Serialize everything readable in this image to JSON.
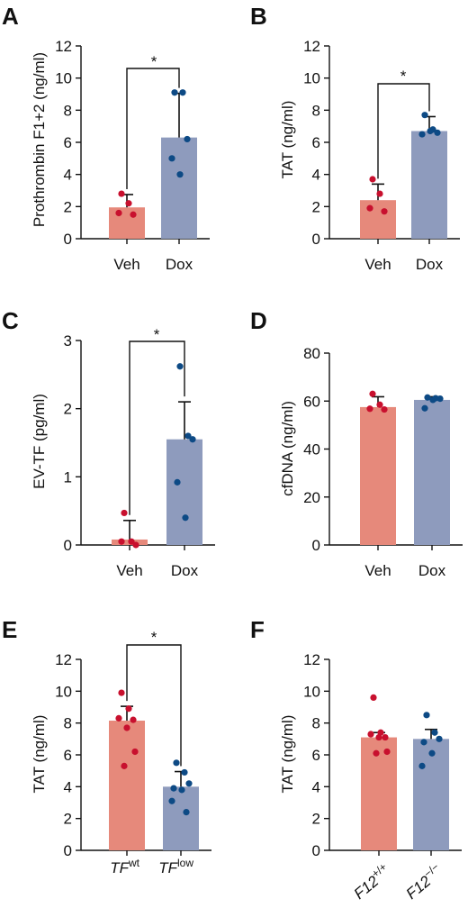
{
  "colors": {
    "veh_bar": "#e6897b",
    "dox_bar": "#8e9bbd",
    "veh_dot": "#c8102e",
    "dox_dot": "#0d4a85",
    "axis": "#111111"
  },
  "chart_data": [
    {
      "type": "bar",
      "panel": "A",
      "ylabel": "Prothrombin F1+2 (ng/ml)",
      "ylim": [
        0,
        12
      ],
      "yticks": [
        "0",
        "2",
        "4",
        "6",
        "8",
        "10",
        "12"
      ],
      "categories": [
        "Veh",
        "Dox"
      ],
      "values": [
        1.95,
        6.3
      ],
      "error_upper": [
        2.75,
        9.05
      ],
      "points": [
        [
          2.8,
          2.2,
          1.6,
          1.5
        ],
        [
          9.1,
          9.1,
          6.2,
          5.0,
          4.0
        ]
      ],
      "significance": "*"
    },
    {
      "type": "bar",
      "panel": "B",
      "ylabel": "TAT (ng/ml)",
      "ylim": [
        0,
        12
      ],
      "yticks": [
        "0",
        "2",
        "4",
        "6",
        "8",
        "10",
        "12"
      ],
      "categories": [
        "Veh",
        "Dox"
      ],
      "values": [
        2.4,
        6.7
      ],
      "error_upper": [
        3.4,
        7.6
      ],
      "points": [
        [
          3.7,
          2.8,
          1.9,
          1.7
        ],
        [
          7.7,
          6.8,
          6.6,
          6.5,
          6.7
        ]
      ],
      "significance": "*"
    },
    {
      "type": "bar",
      "panel": "C",
      "ylabel": "EV-TF (pg/ml)",
      "ylim": [
        0,
        3
      ],
      "yticks": [
        "0",
        "1",
        "2",
        "3"
      ],
      "categories": [
        "Veh",
        "Dox"
      ],
      "values": [
        0.08,
        1.55
      ],
      "error_upper": [
        0.36,
        2.1
      ],
      "points": [
        [
          0.47,
          0.05,
          0.05,
          0.0
        ],
        [
          2.62,
          1.6,
          1.55,
          0.92,
          0.4
        ]
      ],
      "significance": "*"
    },
    {
      "type": "bar",
      "panel": "D",
      "ylabel": "cfDNA (ng/ml)",
      "ylim": [
        0,
        80
      ],
      "yticks": [
        "0",
        "20",
        "40",
        "60",
        "80"
      ],
      "categories": [
        "Veh",
        "Dox"
      ],
      "values": [
        57.5,
        60.5
      ],
      "error_upper": [
        61.8,
        61.8
      ],
      "points": [
        [
          63.0,
          58.5,
          56.8,
          56.5
        ],
        [
          61.5,
          61.2,
          61.0,
          57.0,
          60.5
        ]
      ],
      "significance": ""
    },
    {
      "type": "bar",
      "panel": "E",
      "ylabel": "TAT (ng/ml)",
      "ylim": [
        0,
        12
      ],
      "yticks": [
        "0",
        "2",
        "4",
        "6",
        "8",
        "10",
        "12"
      ],
      "categories": [
        "TF",
        "TF"
      ],
      "category_sup": [
        "wt",
        "low"
      ],
      "category_italic": true,
      "values": [
        8.15,
        4.0
      ],
      "error_upper": [
        9.05,
        4.95
      ],
      "points": [
        [
          9.9,
          8.9,
          8.3,
          8.2,
          7.7,
          6.2,
          5.3
        ],
        [
          5.5,
          4.9,
          4.2,
          3.9,
          3.8,
          3.1,
          2.4
        ]
      ],
      "significance": "*"
    },
    {
      "type": "bar",
      "panel": "F",
      "ylabel": "TAT (ng/ml)",
      "ylim": [
        0,
        12
      ],
      "yticks": [
        "0",
        "2",
        "4",
        "6",
        "8",
        "10",
        "12"
      ],
      "categories": [
        "F12",
        "F12"
      ],
      "category_sup": [
        "+/+",
        "−/−"
      ],
      "category_italic": true,
      "values": [
        7.1,
        7.0
      ],
      "error_upper": [
        7.4,
        7.6
      ],
      "points": [
        [
          9.6,
          7.4,
          7.3,
          7.1,
          7.1,
          6.2,
          6.1
        ],
        [
          8.5,
          7.4,
          7.0,
          6.8,
          6.1,
          5.3
        ]
      ],
      "significance": ""
    }
  ]
}
